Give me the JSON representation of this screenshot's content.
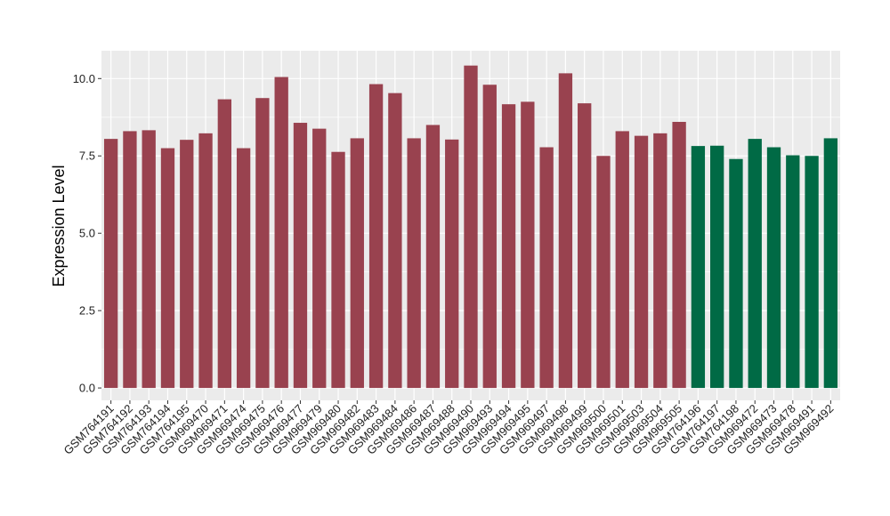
{
  "chart_data": {
    "type": "bar",
    "title": "",
    "xlabel": "",
    "ylabel": "Expression Level",
    "ylim": [
      -0.4,
      10.9
    ],
    "yticks": [
      0.0,
      2.5,
      5.0,
      7.5,
      10.0
    ],
    "ytick_labels": [
      "0.0",
      "2.5",
      "5.0",
      "7.5",
      "10.0"
    ],
    "grid": true,
    "legend": "none",
    "categories": [
      "GSM764191",
      "GSM764192",
      "GSM764193",
      "GSM764194",
      "GSM764195",
      "GSM969470",
      "GSM969471",
      "GSM969474",
      "GSM969475",
      "GSM969476",
      "GSM969477",
      "GSM969479",
      "GSM969480",
      "GSM969482",
      "GSM969483",
      "GSM969484",
      "GSM969486",
      "GSM969487",
      "GSM969488",
      "GSM969490",
      "GSM969493",
      "GSM969494",
      "GSM969495",
      "GSM969497",
      "GSM969498",
      "GSM969499",
      "GSM969500",
      "GSM969501",
      "GSM969503",
      "GSM969504",
      "GSM969505",
      "GSM764196",
      "GSM764197",
      "GSM764198",
      "GSM969472",
      "GSM969473",
      "GSM969478",
      "GSM969491",
      "GSM969492"
    ],
    "values": [
      8.05,
      8.3,
      8.33,
      7.75,
      8.02,
      8.23,
      9.33,
      7.75,
      9.37,
      10.05,
      8.57,
      8.38,
      7.63,
      8.07,
      9.82,
      9.53,
      8.07,
      8.5,
      8.03,
      10.42,
      9.8,
      9.17,
      9.25,
      7.78,
      10.17,
      9.2,
      7.5,
      8.3,
      8.15,
      8.23,
      8.6,
      7.82,
      7.83,
      7.4,
      8.05,
      7.78,
      7.52,
      7.5,
      8.07
    ],
    "bar_colors": [
      "#99424f",
      "#99424f",
      "#99424f",
      "#99424f",
      "#99424f",
      "#99424f",
      "#99424f",
      "#99424f",
      "#99424f",
      "#99424f",
      "#99424f",
      "#99424f",
      "#99424f",
      "#99424f",
      "#99424f",
      "#99424f",
      "#99424f",
      "#99424f",
      "#99424f",
      "#99424f",
      "#99424f",
      "#99424f",
      "#99424f",
      "#99424f",
      "#99424f",
      "#99424f",
      "#99424f",
      "#99424f",
      "#99424f",
      "#99424f",
      "#99424f",
      "#006a45",
      "#006a45",
      "#006a45",
      "#006a45",
      "#006a45",
      "#006a45",
      "#006a45",
      "#006a45"
    ],
    "colors": {
      "panel_background": "#ebebeb",
      "grid_line": "#ffffff",
      "group_1": "#99424f",
      "group_2": "#006a45"
    }
  }
}
